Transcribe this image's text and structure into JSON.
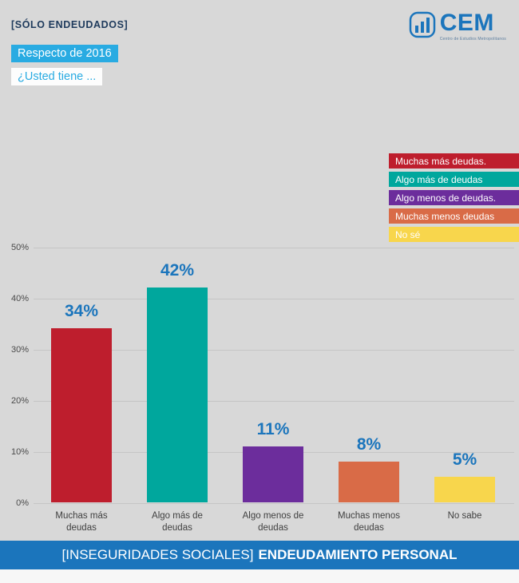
{
  "header": {
    "tag": "[SÓLO ENDEUDADOS]",
    "highlight_line1": "Respecto de 2016",
    "highlight_line2": "¿Usted tiene ...",
    "logo_text": "CEM",
    "logo_tagline": "Centro de Estudios Metropolitanos"
  },
  "legend": {
    "items": [
      {
        "label": "Muchas más deudas.",
        "color": "#be1e2d"
      },
      {
        "label": "Algo más de deudas",
        "color": "#00a79d"
      },
      {
        "label": "Algo menos de deudas.",
        "color": "#6c2d9c"
      },
      {
        "label": "Muchas menos deudas",
        "color": "#d96b47"
      },
      {
        "label": "No sé",
        "color": "#f8d64c"
      }
    ]
  },
  "chart_data": {
    "type": "bar",
    "title": "",
    "categories": [
      "Muchas más deudas",
      "Algo más de deudas",
      "Algo menos de deudas",
      "Muchas menos deudas",
      "No sabe"
    ],
    "values": [
      34,
      42,
      11,
      8,
      5
    ],
    "value_labels": [
      "34%",
      "42%",
      "11%",
      "8%",
      "5%"
    ],
    "colors": [
      "#be1e2d",
      "#00a79d",
      "#6c2d9c",
      "#d96b47",
      "#f8d64c"
    ],
    "yticks": [
      "0%",
      "10%",
      "20%",
      "30%",
      "40%",
      "50%"
    ],
    "ylim": [
      0,
      50
    ],
    "grid": true,
    "legend_position": "upper right",
    "value_label_color": "#1b75bc"
  },
  "footer": {
    "bracket": "[INSEGURIDADES SOCIALES]",
    "title": "ENDEUDAMIENTO PERSONAL"
  }
}
